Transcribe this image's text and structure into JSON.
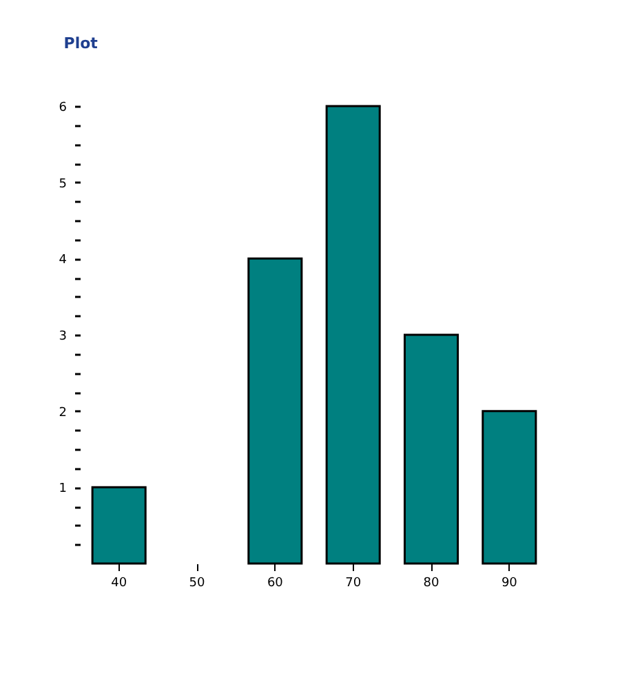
{
  "chart_data": {
    "type": "bar",
    "title": "Plot",
    "categories": [
      "40",
      "50",
      "60",
      "70",
      "80",
      "90"
    ],
    "values": [
      1,
      0,
      4,
      6,
      3,
      2
    ],
    "color": "#008080",
    "ylim": [
      0,
      6
    ],
    "yticks": [
      {
        "value": 0.25,
        "label": null
      },
      {
        "value": 0.5,
        "label": null
      },
      {
        "value": 0.75,
        "label": null
      },
      1,
      {
        "value": 1.25,
        "label": null
      },
      {
        "value": 1.5,
        "label": null
      },
      {
        "value": 1.75,
        "label": null
      },
      2,
      {
        "value": 2.25,
        "label": null
      },
      {
        "value": 2.5,
        "label": null
      },
      {
        "value": 2.75,
        "label": null
      },
      3,
      {
        "value": 3.25,
        "label": null
      },
      {
        "value": 3.5,
        "label": null
      },
      {
        "value": 3.75,
        "label": null
      },
      4,
      {
        "value": 4.25,
        "label": null
      },
      {
        "value": 4.5,
        "label": null
      },
      {
        "value": 4.75,
        "label": null
      },
      5,
      {
        "value": 5.25,
        "label": null
      },
      {
        "value": 5.5,
        "label": null
      },
      {
        "value": 5.75,
        "label": null
      },
      6
    ],
    "grid": false
  }
}
